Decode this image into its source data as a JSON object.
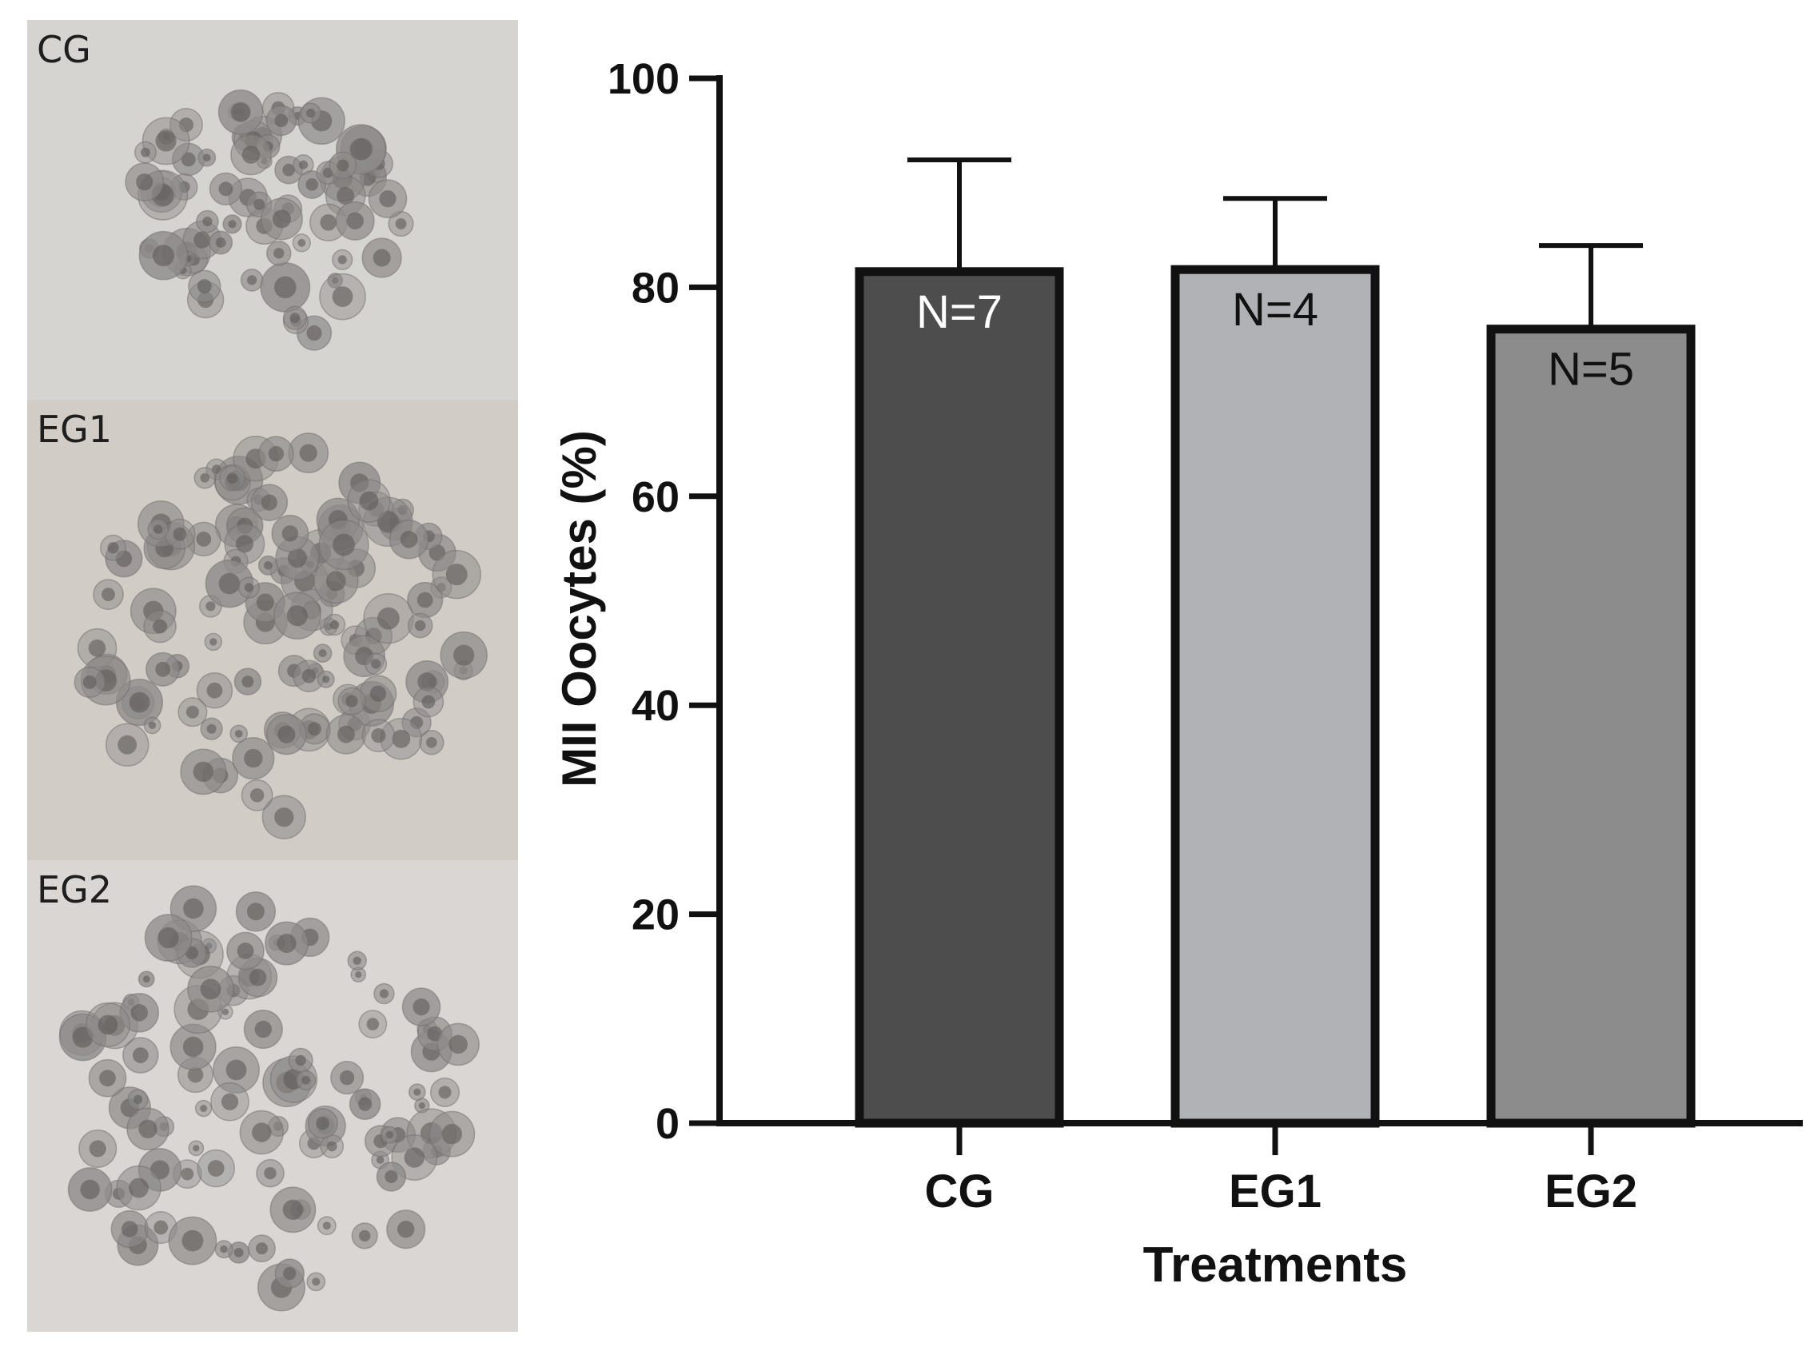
{
  "panels": [
    {
      "label": "CG",
      "image": "oocyte cluster micrograph",
      "tint": "#d6d4d0"
    },
    {
      "label": "EG1",
      "image": "oocyte cluster micrograph",
      "tint": "#d2ccc6"
    },
    {
      "label": "EG2",
      "image": "oocyte cluster micrograph",
      "tint": "#d9d6d3"
    }
  ],
  "chart_data": {
    "type": "bar",
    "categories": [
      "CG",
      "EG1",
      "EG2"
    ],
    "values": [
      81.5,
      81.7,
      76.0
    ],
    "error_upper": [
      92.2,
      88.5,
      84.0
    ],
    "labels": [
      "N=7",
      "N=4",
      "N=5"
    ],
    "colors": [
      "#4d4d4d",
      "#b1b2b6",
      "#8c8c8c"
    ],
    "label_colors": [
      "#ffffff",
      "#111111",
      "#111111"
    ],
    "ylabel": "MII Oocytes (%)",
    "xlabel": "Treatments",
    "ylim": [
      0,
      100
    ],
    "yticks": [
      0,
      20,
      40,
      60,
      80,
      100
    ],
    "grid": false,
    "legend": "none"
  }
}
